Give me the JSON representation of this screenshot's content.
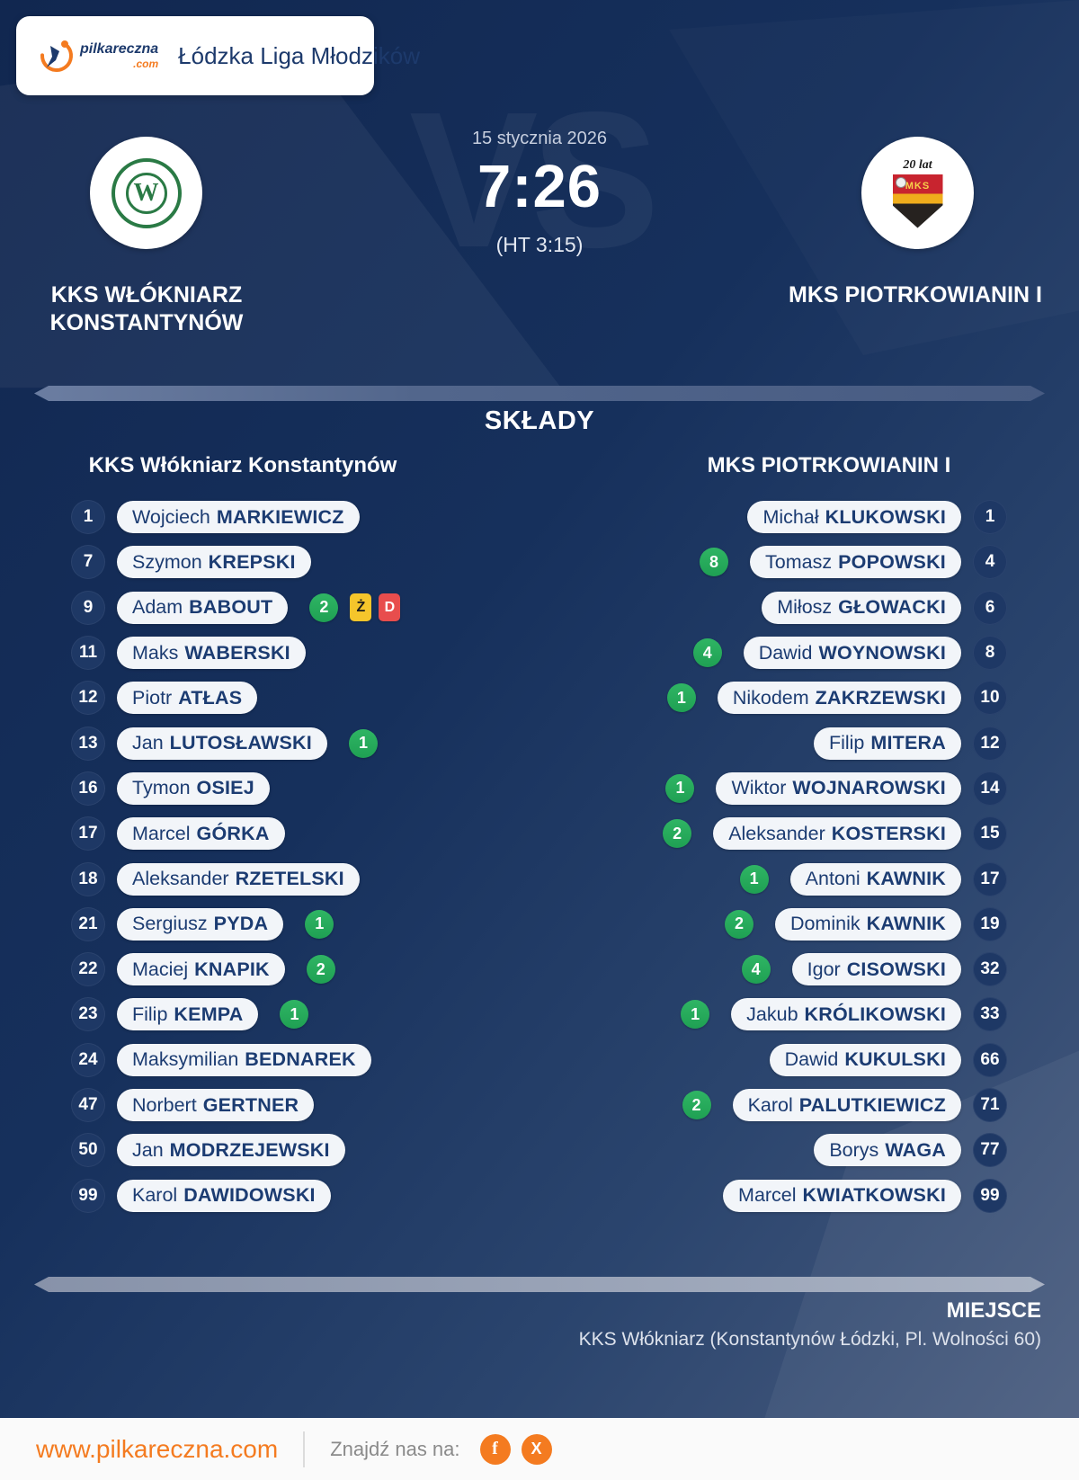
{
  "header": {
    "brand": {
      "name": "pilkareczna",
      "tld": ".com"
    },
    "league_title": "Łódzka Liga Młodzików"
  },
  "match": {
    "date": "15 stycznia 2026",
    "score": "7:26",
    "halftime": "(HT 3:15)",
    "vs_watermark": "VS",
    "home": {
      "name": "KKS WŁÓKNIARZ KONSTANTYNÓW",
      "logo_letter": "W"
    },
    "away": {
      "name": "MKS PIOTRKOWIANIN I",
      "logo_anniversary": "20 lat",
      "logo_text": "MKS"
    }
  },
  "lineups": {
    "section_title": "SKŁADY",
    "home_header": "KKS Włókniarz Konstantynów",
    "away_header": "MKS PIOTRKOWIANIN I",
    "cards": {
      "yellow_letter": "Ż",
      "red_letter": "D"
    },
    "home_players": [
      {
        "number": "1",
        "first": "Wojciech",
        "last": "MARKIEWICZ"
      },
      {
        "number": "7",
        "first": "Szymon",
        "last": "KREPSKI"
      },
      {
        "number": "9",
        "first": "Adam",
        "last": "BABOUT",
        "goals": "2",
        "yellow": true,
        "red": true
      },
      {
        "number": "11",
        "first": "Maks",
        "last": "WABERSKI"
      },
      {
        "number": "12",
        "first": "Piotr",
        "last": "ATŁAS"
      },
      {
        "number": "13",
        "first": "Jan",
        "last": "LUTOSŁAWSKI",
        "goals": "1"
      },
      {
        "number": "16",
        "first": "Tymon",
        "last": "OSIEJ"
      },
      {
        "number": "17",
        "first": "Marcel",
        "last": "GÓRKA"
      },
      {
        "number": "18",
        "first": "Aleksander",
        "last": "RZETELSKI"
      },
      {
        "number": "21",
        "first": "Sergiusz",
        "last": "PYDA",
        "goals": "1"
      },
      {
        "number": "22",
        "first": "Maciej",
        "last": "KNAPIK",
        "goals": "2"
      },
      {
        "number": "23",
        "first": "Filip",
        "last": "KEMPA",
        "goals": "1"
      },
      {
        "number": "24",
        "first": "Maksymilian",
        "last": "BEDNAREK"
      },
      {
        "number": "47",
        "first": "Norbert",
        "last": "GERTNER"
      },
      {
        "number": "50",
        "first": "Jan",
        "last": "MODRZEJEWSKI"
      },
      {
        "number": "99",
        "first": "Karol",
        "last": "DAWIDOWSKI"
      }
    ],
    "away_players": [
      {
        "number": "1",
        "first": "Michał",
        "last": "KLUKOWSKI"
      },
      {
        "number": "4",
        "first": "Tomasz",
        "last": "POPOWSKI",
        "goals": "8"
      },
      {
        "number": "6",
        "first": "Miłosz",
        "last": "GŁOWACKI"
      },
      {
        "number": "8",
        "first": "Dawid",
        "last": "WOYNOWSKI",
        "goals": "4"
      },
      {
        "number": "10",
        "first": "Nikodem",
        "last": "ZAKRZEWSKI",
        "goals": "1"
      },
      {
        "number": "12",
        "first": "Filip",
        "last": "MITERA"
      },
      {
        "number": "14",
        "first": "Wiktor",
        "last": "WOJNAROWSKI",
        "goals": "1"
      },
      {
        "number": "15",
        "first": "Aleksander",
        "last": "KOSTERSKI",
        "goals": "2"
      },
      {
        "number": "17",
        "first": "Antoni",
        "last": "KAWNIK",
        "goals": "1"
      },
      {
        "number": "19",
        "first": "Dominik",
        "last": "KAWNIK",
        "goals": "2"
      },
      {
        "number": "32",
        "first": "Igor",
        "last": "CISOWSKI",
        "goals": "4"
      },
      {
        "number": "33",
        "first": "Jakub",
        "last": "KRÓLIKOWSKI",
        "goals": "1"
      },
      {
        "number": "66",
        "first": "Dawid",
        "last": "KUKULSKI"
      },
      {
        "number": "71",
        "first": "Karol",
        "last": "PALUTKIEWICZ",
        "goals": "2"
      },
      {
        "number": "77",
        "first": "Borys",
        "last": "WAGA"
      },
      {
        "number": "99",
        "first": "Marcel",
        "last": "KWIATKOWSKI"
      }
    ]
  },
  "venue": {
    "label": "MIEJSCE",
    "address": "KKS Włókniarz (Konstantynów Łódzki, Pl. Wolności 60)"
  },
  "footer": {
    "site": "www.pilkareczna.com",
    "find_us": "Znajdź nas na:",
    "facebook_glyph": "f",
    "x_glyph": "X"
  },
  "colors": {
    "accent_orange": "#f47b20",
    "goal_green": "#27ae60",
    "yellow_card": "#f5c52b",
    "red_card": "#e84d4d",
    "navy_text": "#1c3c72",
    "background_navy": "#16305c"
  }
}
